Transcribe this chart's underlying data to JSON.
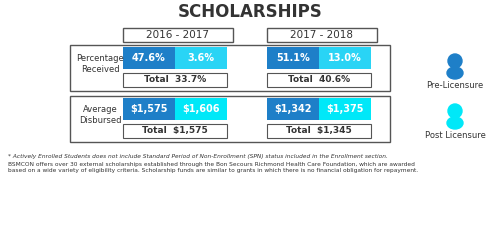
{
  "title": "SCHOLARSHIPS",
  "col_headers": [
    "2016 - 2017",
    "2017 - 2018"
  ],
  "row_labels_1": "Percentage\nReceived",
  "row_labels_2": "Average\nDisbursed",
  "pct_col1_blue": "47.6%",
  "pct_col1_cyan": "3.6%",
  "pct_col1_total": "Total  33.7%",
  "pct_col2_blue": "51.1%",
  "pct_col2_cyan": "13.0%",
  "pct_col2_total": "Total  40.6%",
  "avg_col1_blue": "$1,575",
  "avg_col1_cyan": "$1,606",
  "avg_col1_total": "Total  $1,575",
  "avg_col2_blue": "$1,342",
  "avg_col2_cyan": "$1,375",
  "avg_col2_total": "Total  $1,345",
  "legend_pre": "Pre-Licensure",
  "legend_post": "Post Licensure",
  "footnote1": "* Actively Enrolled Students does not include Standard Period of Non-Enrollment (SPN) status included in the Enrollment section.",
  "footnote2": "BSMCON offers over 30 external scholarships established through the Bon Secours Richmond Health Care Foundation, which are awarded\nbased on a wide variety of eligibility criteria. Scholarship funds are similar to grants in which there is no financial obligation for repayment.",
  "blue_color": "#1E7FC8",
  "cyan_color": "#29D4F5",
  "post_cyan": "#00E8F8",
  "bg_white": "#FFFFFF",
  "border_color": "#555555",
  "text_white": "#FFFFFF",
  "text_dark": "#333333"
}
